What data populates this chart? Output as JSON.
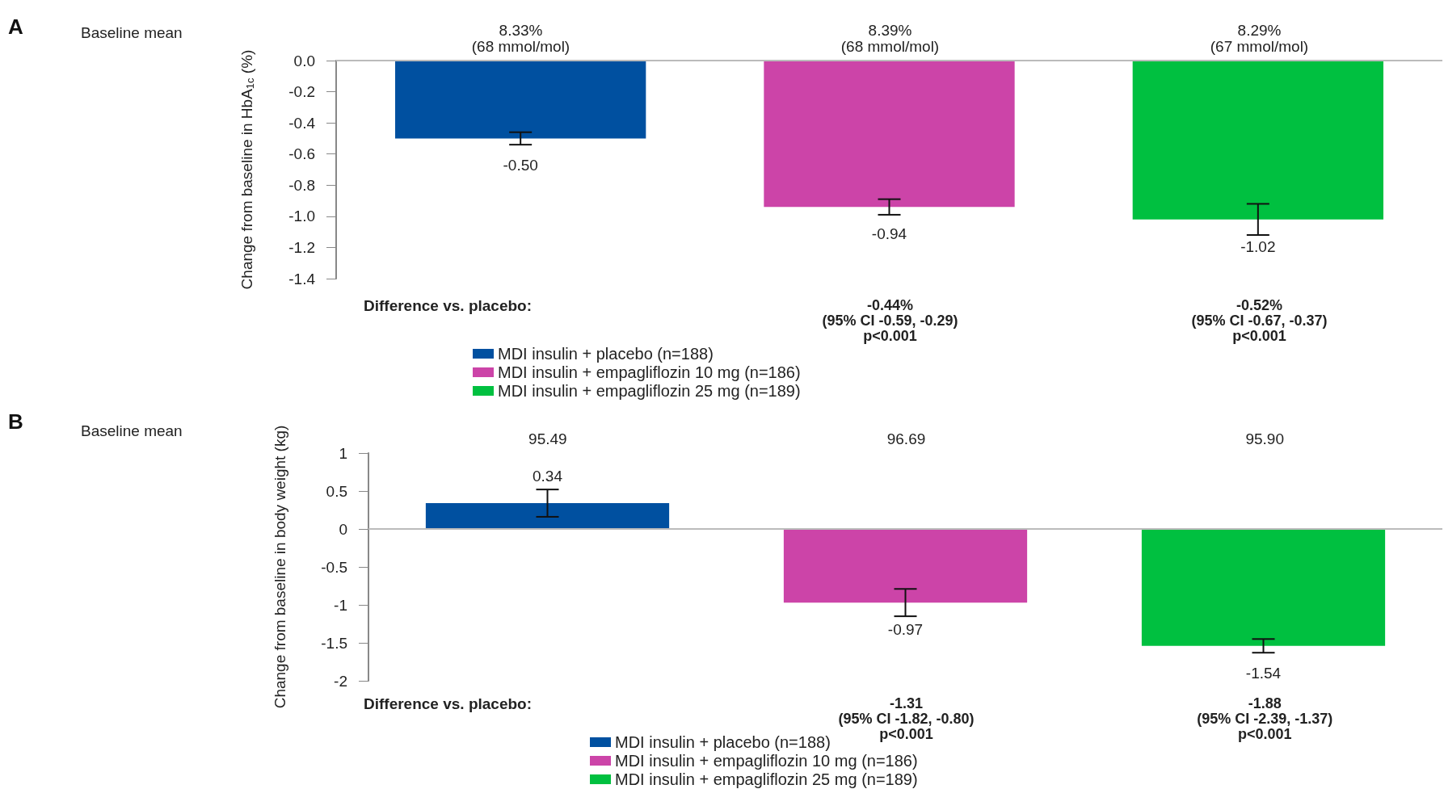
{
  "chart_data": [
    {
      "type": "bar",
      "ylabel": "Change from baseline in HbA$_{1c}$ (%)",
      "categories": [
        null,
        null,
        null
      ],
      "ylim": [
        -1.4,
        0
      ],
      "yticks": [
        {
          "value": 0,
          "label": "0.0"
        },
        -0.2,
        -0.4,
        -0.6,
        -0.8,
        {
          "value": -1,
          "label": "-1.0"
        },
        -1.2,
        -1.4
      ],
      "grid": false,
      "legend": "bottom",
      "tick_labels": "y",
      "ref_lines": [
        {
          "axis": "y",
          "value": 0,
          "color": "#bbbbbb"
        }
      ],
      "annotations": [
        "A",
        "Baseline mean",
        "8.33%\n(68 mmol/mol)",
        "8.39%\n(68 mmol/mol)",
        "8.29%\n(67 mmol/mol)",
        "Difference vs. placebo:",
        "-0.44%\n(95% CI -0.59, -0.29)\np<0.001",
        "-0.52%\n(95% CI -0.67, -0.37)\np<0.001"
      ],
      "series": [
        {
          "name": "MDI insulin + placebo (n=188)",
          "color": "#0050a0",
          "values": [
            -0.5,
            null,
            null
          ],
          "errors": [
            0.04,
            null,
            null
          ],
          "value_labels": [
            "-0.50",
            null,
            null
          ]
        },
        {
          "name": "MDI insulin + empagliflozin 10 mg (n=186)",
          "color": "#cc44a8",
          "values": [
            null,
            -0.94,
            null
          ],
          "errors": [
            null,
            0.05,
            null
          ],
          "value_labels": [
            null,
            "-0.94",
            null
          ]
        },
        {
          "name": "MDI insulin + empagliflozin 25 mg (n=189)",
          "color": "#00c040",
          "values": [
            null,
            null,
            -1.02
          ],
          "errors": [
            null,
            null,
            0.1
          ],
          "value_labels": [
            null,
            null,
            "-1.02"
          ]
        }
      ]
    },
    {
      "type": "bar",
      "ylabel": "Change from baseline in body weight (kg)",
      "categories": [
        null,
        null,
        null
      ],
      "ylim": [
        -2,
        1
      ],
      "yticks": [
        1,
        0.5,
        0,
        -0.5,
        -1,
        -1.5,
        -2
      ],
      "grid": false,
      "legend": "bottom",
      "tick_labels": "y",
      "ref_lines": [
        {
          "axis": "y",
          "value": 0,
          "color": "#bbbbbb"
        }
      ],
      "annotations": [
        "B",
        "Baseline mean",
        "95.49",
        "96.69",
        "95.90",
        "Difference vs. placebo:",
        "-1.31\n(95% CI -1.82, -0.80)\np<0.001",
        "-1.88\n(95% CI -2.39, -1.37)\np<0.001"
      ],
      "series": [
        {
          "name": "MDI insulin + placebo (n=188)",
          "color": "#0050a0",
          "values": [
            0.34,
            null,
            null
          ],
          "errors": [
            0.18,
            null,
            null
          ],
          "value_labels": [
            "0.34",
            null,
            null
          ]
        },
        {
          "name": "MDI insulin + empagliflozin 10 mg (n=186)",
          "color": "#cc44a8",
          "values": [
            null,
            -0.97,
            null
          ],
          "errors": [
            null,
            0.18,
            null
          ],
          "value_labels": [
            null,
            "-0.97",
            null
          ]
        },
        {
          "name": "MDI insulin + empagliflozin 25 mg (n=189)",
          "color": "#00c040",
          "values": [
            null,
            null,
            -1.54
          ],
          "errors": [
            null,
            null,
            0.09
          ],
          "value_labels": [
            null,
            null,
            "-1.54"
          ]
        }
      ]
    }
  ]
}
